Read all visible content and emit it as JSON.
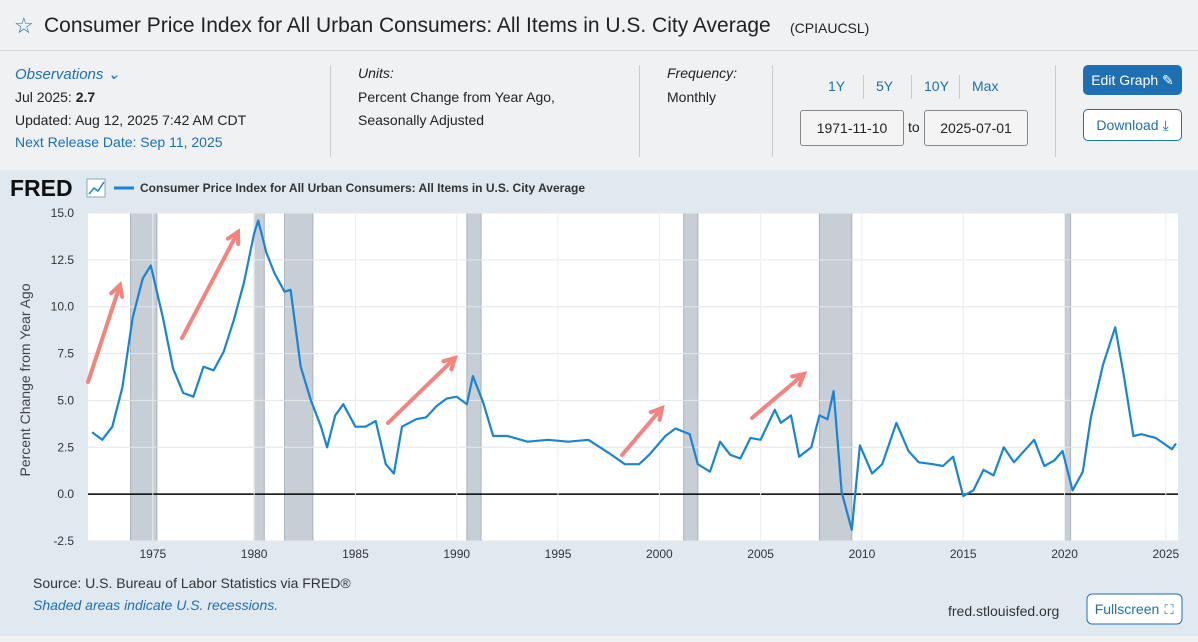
{
  "header": {
    "title": "Consumer Price Index for All Urban Consumers: All Items in U.S. City Average",
    "series_id": "(CPIAUCSL)"
  },
  "info": {
    "observations": "Observations",
    "obs_date": "Jul 2025:",
    "obs_value": "2.7",
    "updated": "Updated: Aug 12, 2025 7:42 AM CDT",
    "next_release": "Next Release Date: Sep 11, 2025",
    "units_label": "Units:",
    "units_1": "Percent Change from Year Ago,",
    "units_2": "Seasonally Adjusted",
    "frequency_label": "Frequency:",
    "frequency": "Monthly",
    "ranges": [
      "1Y",
      "5Y",
      "10Y",
      "Max"
    ],
    "start": "1971-11-10",
    "to": "to",
    "end": "2025-07-01",
    "edit": "Edit Graph",
    "download": "Download"
  },
  "footer": {
    "source": "Source: U.S. Bureau of Labor Statistics via FRED®",
    "note": "Shaded areas indicate U.S. recessions.",
    "site": "fred.stlouisfed.org",
    "fullscreen": "Fullscreen"
  },
  "chart_data": {
    "type": "line",
    "logo": "FRED",
    "ylabel": "Percent Change from Year Ago",
    "xlim": [
      1971.8,
      2025.6
    ],
    "ylim": [
      -2.5,
      15
    ],
    "xticks": [
      1975,
      1980,
      1985,
      1990,
      1995,
      2000,
      2005,
      2010,
      2015,
      2020,
      2025
    ],
    "yticks": [
      {
        "value": -2.5,
        "label": "-2.5"
      },
      {
        "value": 0,
        "label": "0.0"
      },
      {
        "value": 2.5,
        "label": "2.5"
      },
      {
        "value": 5,
        "label": "5.0"
      },
      {
        "value": 7.5,
        "label": "7.5"
      },
      {
        "value": 10,
        "label": "10.0"
      },
      {
        "value": 12.5,
        "label": "12.5"
      },
      {
        "value": 15,
        "label": "15.0"
      }
    ],
    "grid": true,
    "recessions": [
      [
        1973.9,
        1975.2
      ],
      [
        1980.0,
        1980.5
      ],
      [
        1981.5,
        1982.9
      ],
      [
        1990.5,
        1991.2
      ],
      [
        2001.2,
        2001.9
      ],
      [
        2007.9,
        2009.5
      ],
      [
        2020.0,
        2020.3
      ]
    ],
    "x": [
      1972.0,
      1972.5,
      1973.0,
      1973.5,
      1974.0,
      1974.5,
      1974.9,
      1975.5,
      1976.0,
      1976.5,
      1977.0,
      1977.5,
      1978.0,
      1978.5,
      1979.0,
      1979.5,
      1980.0,
      1980.2,
      1980.6,
      1981.0,
      1981.5,
      1981.8,
      1982.3,
      1982.8,
      1983.3,
      1983.6,
      1984.0,
      1984.4,
      1985.0,
      1985.5,
      1986.0,
      1986.5,
      1986.9,
      1987.3,
      1988.0,
      1988.5,
      1989.0,
      1989.5,
      1990.0,
      1990.5,
      1990.8,
      1991.3,
      1991.8,
      1992.5,
      1993.5,
      1994.5,
      1995.5,
      1996.5,
      1997.5,
      1998.3,
      1999.0,
      1999.5,
      2000.3,
      2000.8,
      2001.5,
      2001.9,
      2002.5,
      2003.0,
      2003.5,
      2004.0,
      2004.5,
      2005.0,
      2005.7,
      2006.0,
      2006.5,
      2006.9,
      2007.5,
      2007.9,
      2008.3,
      2008.6,
      2009.0,
      2009.5,
      2009.9,
      2010.5,
      2011.0,
      2011.7,
      2012.3,
      2012.8,
      2013.5,
      2014.0,
      2014.5,
      2015.0,
      2015.5,
      2016.0,
      2016.5,
      2017.0,
      2017.5,
      2018.5,
      2019.0,
      2019.5,
      2019.9,
      2020.4,
      2020.9,
      2021.3,
      2021.9,
      2022.5,
      2022.9,
      2023.4,
      2023.8,
      2024.5,
      2024.9,
      2025.3,
      2025.5
    ],
    "series": [
      {
        "name": "Consumer Price Index for All Urban Consumers: All Items in U.S. City Average",
        "color": "#1a84d4",
        "values": [
          3.3,
          2.9,
          3.6,
          5.7,
          9.4,
          11.5,
          12.2,
          9.4,
          6.7,
          5.4,
          5.2,
          6.8,
          6.6,
          7.6,
          9.3,
          11.3,
          13.9,
          14.6,
          12.9,
          11.8,
          10.8,
          10.9,
          6.8,
          5.0,
          3.6,
          2.5,
          4.2,
          4.8,
          3.6,
          3.6,
          3.9,
          1.6,
          1.1,
          3.6,
          4.0,
          4.1,
          4.7,
          5.1,
          5.2,
          4.8,
          6.3,
          4.9,
          3.1,
          3.1,
          2.8,
          2.9,
          2.8,
          2.9,
          2.2,
          1.6,
          1.6,
          2.1,
          3.1,
          3.5,
          3.2,
          1.6,
          1.2,
          2.8,
          2.1,
          1.9,
          3.0,
          2.9,
          4.5,
          3.8,
          4.2,
          2.0,
          2.5,
          4.2,
          4.0,
          5.5,
          0.1,
          -1.9,
          2.6,
          1.1,
          1.6,
          3.8,
          2.3,
          1.7,
          1.6,
          1.5,
          2.0,
          -0.1,
          0.2,
          1.3,
          1.0,
          2.5,
          1.7,
          2.9,
          1.5,
          1.8,
          2.3,
          0.2,
          1.2,
          4.1,
          6.9,
          8.9,
          6.5,
          3.1,
          3.2,
          3.0,
          2.7,
          2.4,
          2.7
        ]
      }
    ]
  }
}
